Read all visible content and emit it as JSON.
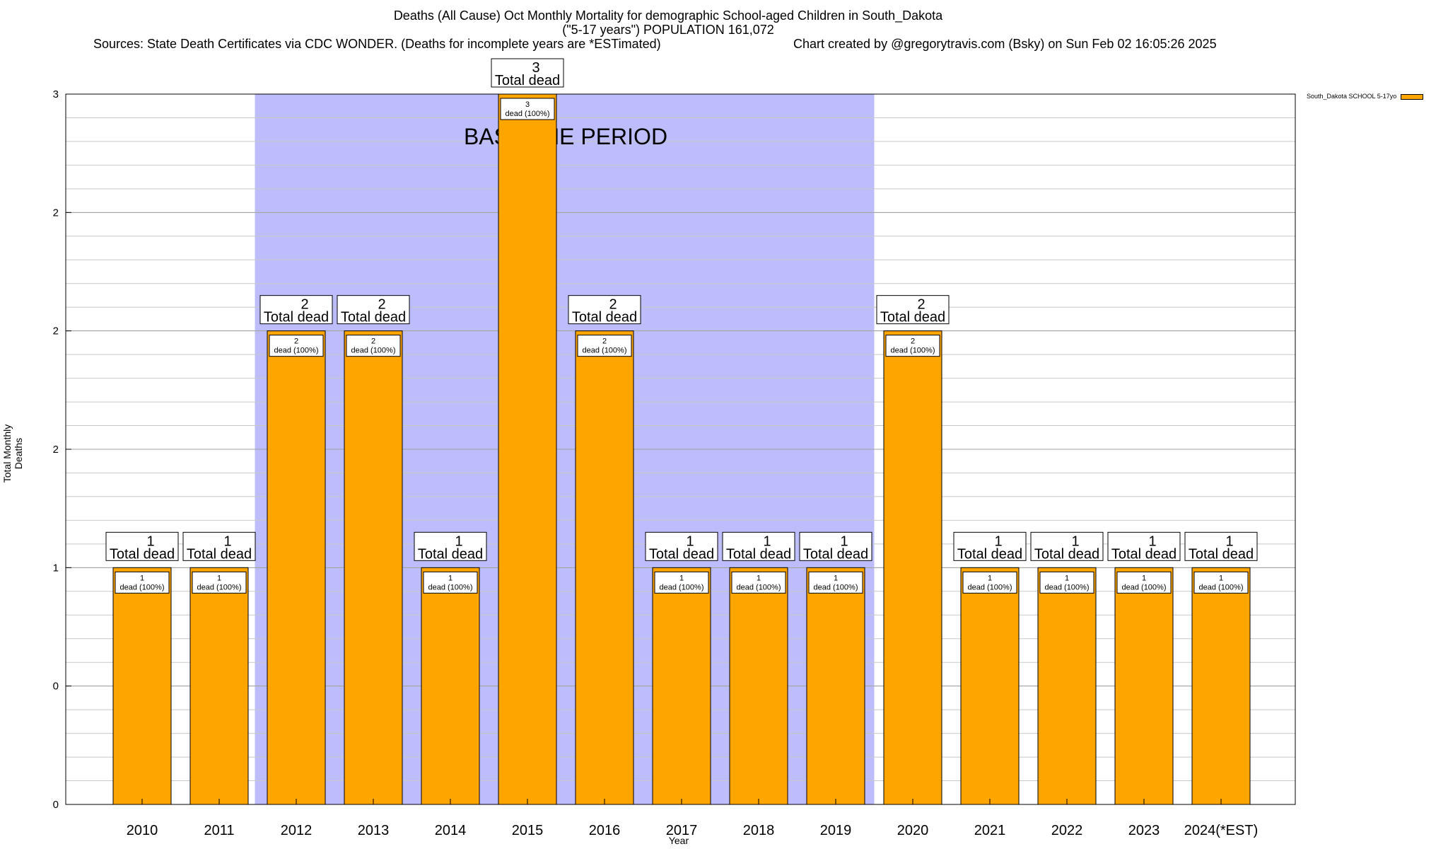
{
  "header": {
    "title_line1": "Deaths (All Cause) Oct Monthly Mortality for demographic School-aged Children in South_Dakota",
    "title_line2": "(\"5-17 years\") POPULATION 161,072",
    "sources": "Sources: State Death Certificates via CDC WONDER. (Deaths for incomplete years are *ESTimated)",
    "credit": "Chart created by @gregorytravis.com (Bsky) on Sun Feb 02 16:05:26 2025"
  },
  "chart_data": {
    "type": "bar",
    "title": "Deaths (All Cause) Oct Monthly Mortality for demographic School-aged Children in South_Dakota",
    "xlabel": "Year",
    "ylabel": "Total Monthly Deaths",
    "categories": [
      "2010",
      "2011",
      "2012",
      "2013",
      "2014",
      "2015",
      "2016",
      "2017",
      "2018",
      "2019",
      "2020",
      "2021",
      "2022",
      "2023",
      "2024(*EST)"
    ],
    "series": [
      {
        "name": "South_Dakota SCHOOL 5-17yo",
        "color": "#FFA500",
        "values": [
          1,
          1,
          2,
          2,
          1,
          3,
          2,
          1,
          1,
          1,
          2,
          1,
          1,
          1,
          1
        ]
      }
    ],
    "ylim": [
      0,
      3
    ],
    "yticks": [
      {
        "value": 0,
        "label": "0"
      },
      {
        "value": 0.5,
        "label": "0"
      },
      {
        "value": 1,
        "label": "1"
      },
      {
        "value": 1.5,
        "label": "2"
      },
      {
        "value": 2,
        "label": "2"
      },
      {
        "value": 2.5,
        "label": "2"
      },
      {
        "value": 3,
        "label": "3"
      }
    ],
    "box_label": "Total dead",
    "inner_label_suffix": "dead (100%)",
    "baseline": {
      "label": "BASELINE PERIOD",
      "from": "2012",
      "to": "2019",
      "color": "#BDBDFC"
    },
    "legend_position": "top-right",
    "grid": true
  }
}
